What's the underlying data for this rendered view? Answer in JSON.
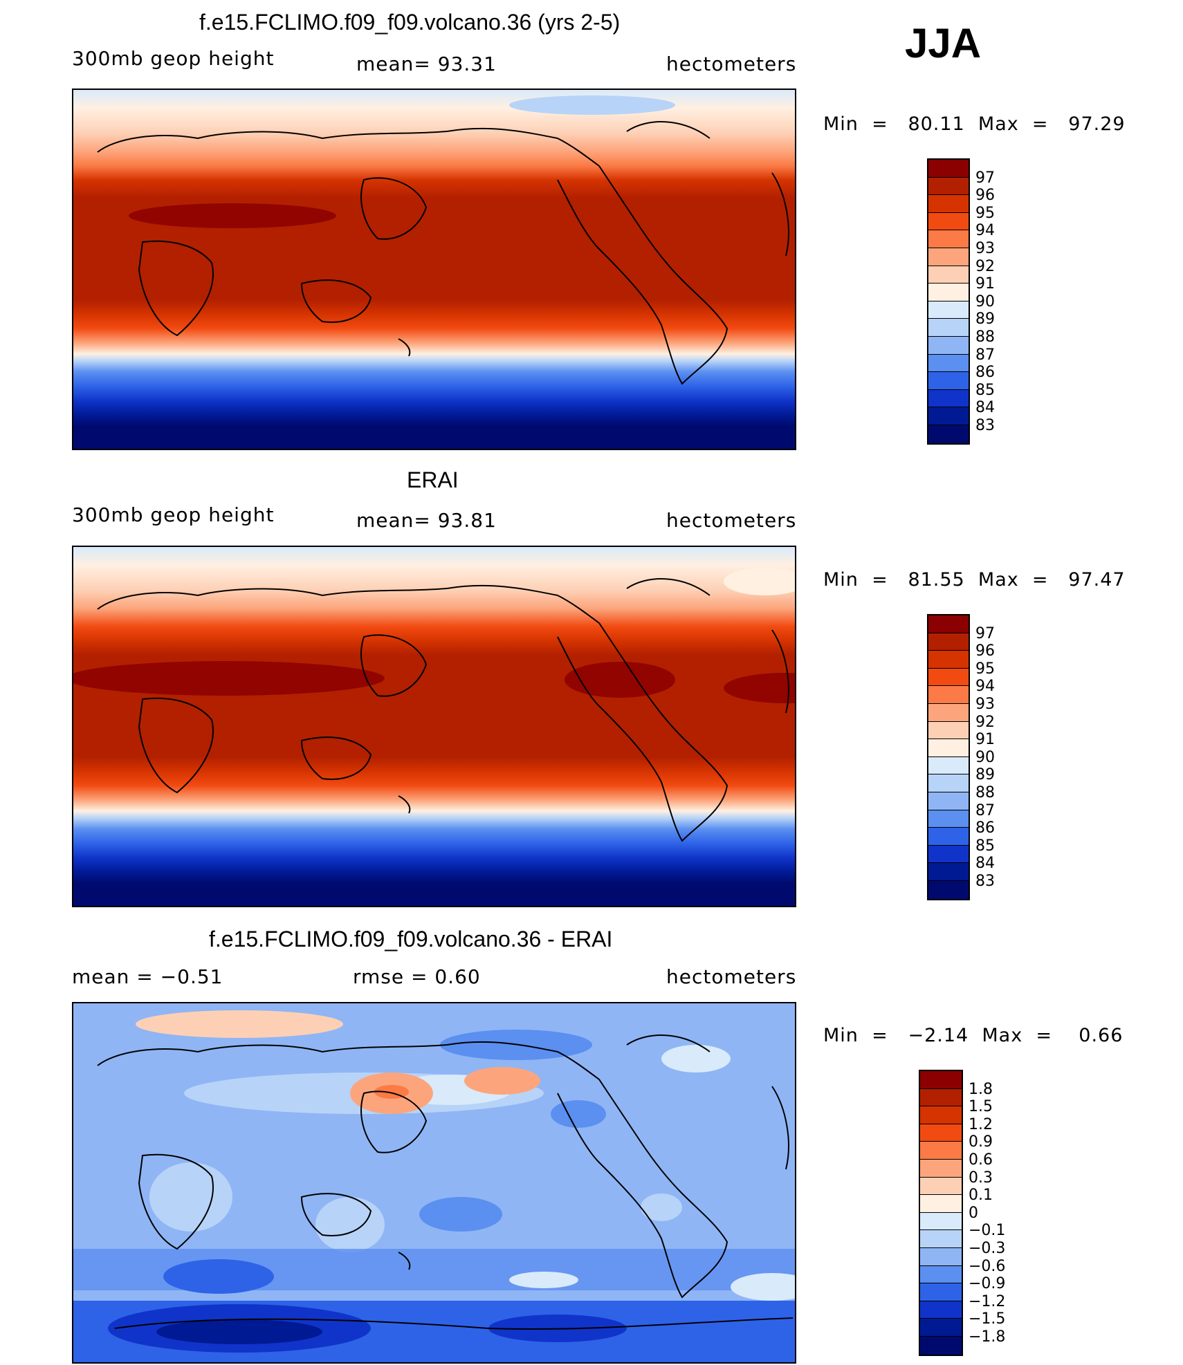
{
  "season": "JJA",
  "panels": [
    {
      "title": "f.e15.FCLIMO.f09_f09.volcano.36 (yrs 2-5)",
      "left_label": "300mb  geop  height",
      "center_label": "mean=   93.31",
      "right_label": "hectometers",
      "minmax": "Min  =   80.11  Max  =   97.29"
    },
    {
      "title": "ERAI",
      "left_label": "300mb  geop  height",
      "center_label": "mean=   93.81",
      "right_label": "hectometers",
      "minmax": "Min  =   81.55  Max  =   97.47"
    },
    {
      "title": "f.e15.FCLIMO.f09_f09.volcano.36 - ERAI",
      "left_label": "mean  =   −0.51",
      "center_label": "rmse  =    0.60",
      "right_label": "hectometers",
      "minmax": "Min  =   −2.14  Max  =    0.66"
    }
  ],
  "colorbars": {
    "height": {
      "labels": [
        "97",
        "96",
        "95",
        "94",
        "93",
        "92",
        "91",
        "90",
        "89",
        "88",
        "87",
        "86",
        "85",
        "84",
        "83"
      ],
      "colors": [
        "#8b0000",
        "#b22000",
        "#d53300",
        "#f24b12",
        "#fb7a45",
        "#fca57c",
        "#fdd0b5",
        "#fff0e2",
        "#d9eafb",
        "#b7d3f8",
        "#8fb5f5",
        "#5b8ff0",
        "#2e63e8",
        "#1034c9",
        "#001a94",
        "#000a6e"
      ]
    },
    "diff": {
      "labels": [
        "1.8",
        "1.5",
        "1.2",
        "0.9",
        "0.6",
        "0.3",
        "0.1",
        "0",
        "−0.1",
        "−0.3",
        "−0.6",
        "−0.9",
        "−1.2",
        "−1.5",
        "−1.8"
      ],
      "colors": [
        "#8b0000",
        "#b22000",
        "#d53300",
        "#f24b12",
        "#fb7a45",
        "#fca57c",
        "#fdd0b5",
        "#fff0e2",
        "#d9eafb",
        "#b7d3f8",
        "#8fb5f5",
        "#5b8ff0",
        "#2e63e8",
        "#1034c9",
        "#001a94",
        "#000a6e"
      ]
    }
  }
}
